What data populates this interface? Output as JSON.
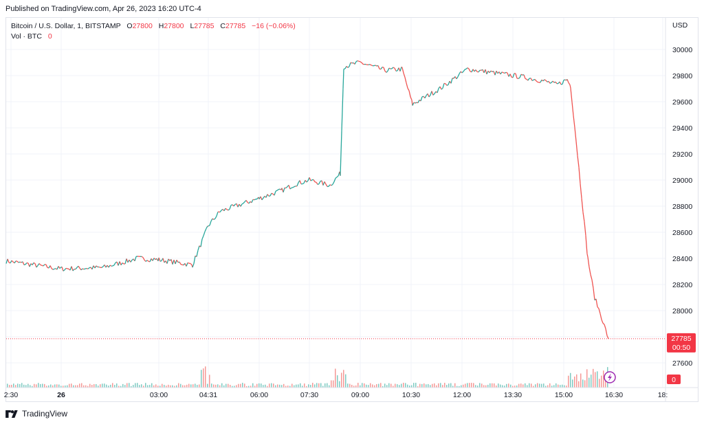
{
  "header": {
    "published": "Published on TradingView.com, Apr 26, 2023 16:20 UTC-4"
  },
  "legend": {
    "symbol": "Bitcoin / U.S. Dollar, 1, BITSTAMP",
    "o_label": "O",
    "o_value": "27800",
    "h_label": "H",
    "h_value": "27800",
    "l_label": "L",
    "l_value": "27785",
    "c_label": "C",
    "c_value": "27785",
    "change": "−16 (−0.06%)",
    "vol_label": "Vol · BTC",
    "vol_value": "0"
  },
  "price_axis": {
    "currency": "USD"
  },
  "last_price": {
    "value": "27785",
    "countdown": "00:50",
    "volume_badge": "0"
  },
  "footer": {
    "brand": "TradingView"
  },
  "colors": {
    "up": "#26a69a",
    "down": "#ef5350",
    "grid": "#f0f3fa",
    "price_line": "#f23645"
  },
  "chart_data": {
    "type": "line",
    "title": "Bitcoin / U.S. Dollar, 1, BITSTAMP",
    "ylabel": "USD",
    "ylim": [
      27500,
      30100
    ],
    "y_ticks": [
      27600,
      27800,
      28000,
      28200,
      28400,
      28600,
      28800,
      29000,
      29200,
      29400,
      29600,
      29800,
      30000
    ],
    "x_tick_labels": [
      "2:30",
      "26",
      "03:00",
      "04:31",
      "06:00",
      "07:30",
      "09:00",
      "10:30",
      "12:00",
      "13:30",
      "15:00",
      "16:30",
      "18:"
    ],
    "grid": true,
    "series": [
      {
        "x": [
          "22:30",
          "00:00",
          "01:00",
          "02:00",
          "03:00",
          "04:00",
          "04:31",
          "05:00",
          "06:00",
          "06:30",
          "07:00",
          "07:30",
          "08:00",
          "08:30",
          "08:40",
          "09:00",
          "09:30",
          "10:00",
          "10:30",
          "11:00",
          "12:00",
          "12:30",
          "13:00",
          "13:30",
          "14:00",
          "14:30",
          "15:00",
          "15:20",
          "15:40",
          "16:00",
          "16:10",
          "16:20"
        ],
        "values": [
          28380,
          28320,
          28330,
          28400,
          28390,
          28350,
          28650,
          28760,
          28860,
          28920,
          28970,
          29000,
          28960,
          29050,
          29870,
          29900,
          29840,
          29850,
          29580,
          29700,
          29850,
          29820,
          29790,
          29760,
          29730,
          29770,
          29720,
          29200,
          28400,
          28100,
          27950,
          27785
        ]
      }
    ]
  }
}
